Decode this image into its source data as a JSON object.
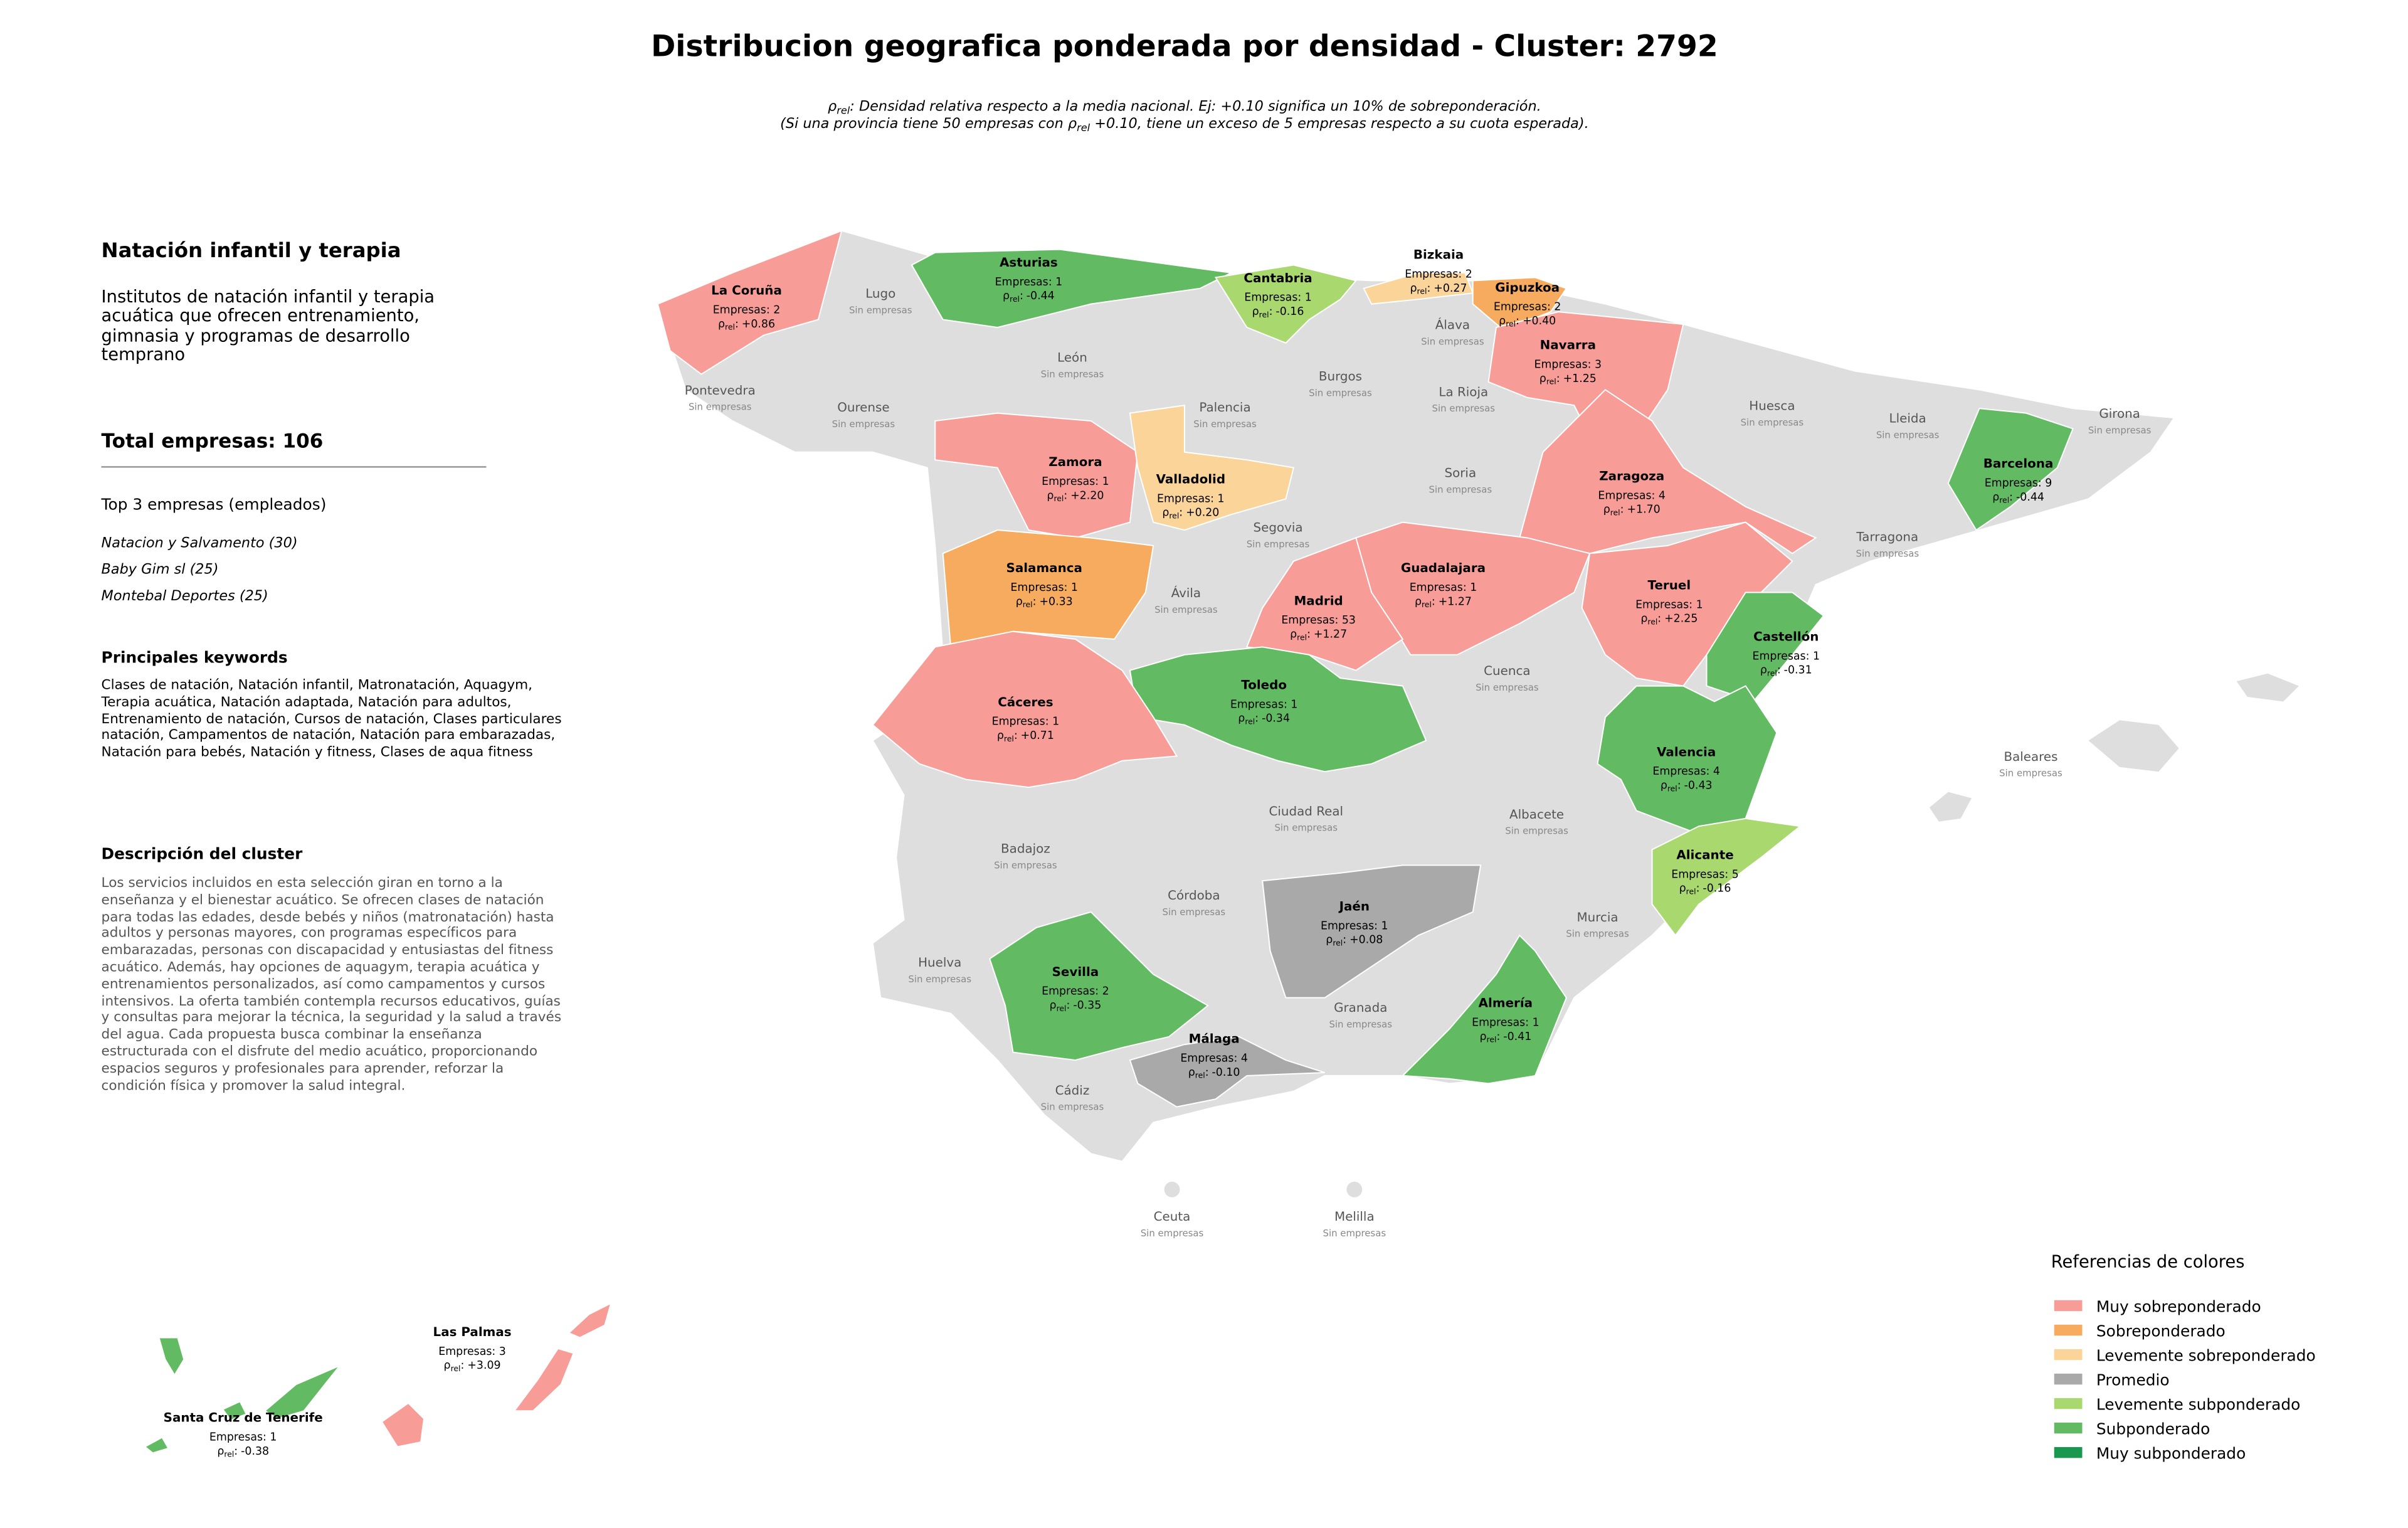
{
  "title": "Distribucion geografica ponderada por densidad - Cluster: 2792",
  "rho_symbol": {
    "base": "ρ",
    "sub": "rel",
    "sep": ":"
  },
  "subtitle": {
    "line1": "Densidad relativa respecto a la media nacional. Ej: +0.10 significa un 10% de sobreponderación.",
    "line2_a": "(Si una provincia tiene 50 empresas con",
    "line2_b": "+0.10, tiene un exceso de 5 empresas respecto a su cuota esperada)."
  },
  "panel": {
    "title": "Natación infantil y terapia",
    "description": "Institutos de natación infantil y terapia acuática que ofrecen entrenamiento, gimnasia y programas de desarrollo temprano",
    "total": "Total empresas: 106",
    "top_title": "Top 3 empresas (empleados)",
    "top": [
      "Natacion y Salvamento (30)",
      "Baby Gim sl (25)",
      "Montebal Deportes (25)"
    ],
    "keywords_title": "Principales keywords",
    "keywords": "Clases de natación, Natación infantil, Matronatación, Aquagym, Terapia acuática, Natación adaptada, Natación para adultos, Entrenamiento de natación, Cursos de natación, Clases particulares natación, Campamentos de natación, Natación para embarazadas, Natación para bebés, Natación y fitness, Clases de aqua fitness",
    "cluster_title": "Descripción del cluster",
    "cluster_text": "Los servicios incluidos en esta selección giran en torno a la enseñanza y el bienestar acuático. Se ofrecen clases de natación para todas las edades, desde bebés y niños (matronatación) hasta adultos y personas mayores, con programas específicos para embarazadas, personas con discapacidad y entusiastas del fitness acuático. Además, hay opciones de aquagym, terapia acuática y entrenamientos personalizados, así como campamentos y cursos intensivos. La oferta también contempla recursos educativos, guías y consultas para mejorar la técnica, la seguridad y la salud a través del agua. Cada propuesta busca combinar la enseñanza estructurada con el disfrute del medio acuático, proporcionando espacios seguros y profesionales para aprender, reforzar la condición física y promover la salud integral."
  },
  "no_companies": "Sin empresas",
  "provinces": [
    {
      "name": "La Coruña",
      "empresas": "Empresas: 2",
      "rho": "+0.86",
      "color": "#f89c98"
    },
    {
      "name": "Lugo"
    },
    {
      "name": "Asturias",
      "empresas": "Empresas: 1",
      "rho": "-0.44",
      "color": "#62bb62"
    },
    {
      "name": "Cantabria",
      "empresas": "Empresas: 1",
      "rho": "-0.16",
      "color": "#a8d86e"
    },
    {
      "name": "Bizkaia",
      "empresas": "Empresas: 2",
      "rho": "+0.27",
      "color": "#fbd49a"
    },
    {
      "name": "Gipuzkoa",
      "empresas": "Empresas: 2",
      "rho": "+0.40",
      "color": "#f6ab5e"
    },
    {
      "name": "Álava"
    },
    {
      "name": "Navarra",
      "empresas": "Empresas: 3",
      "rho": "+1.25",
      "color": "#f89c98"
    },
    {
      "name": "León"
    },
    {
      "name": "Pontevedra"
    },
    {
      "name": "Ourense"
    },
    {
      "name": "Burgos"
    },
    {
      "name": "La Rioja"
    },
    {
      "name": "Huesca"
    },
    {
      "name": "Lleida"
    },
    {
      "name": "Girona"
    },
    {
      "name": "Palencia"
    },
    {
      "name": "Zamora",
      "empresas": "Empresas: 1",
      "rho": "+2.20",
      "color": "#f89c98"
    },
    {
      "name": "Valladolid",
      "empresas": "Empresas: 1",
      "rho": "+0.20",
      "color": "#fbd49a"
    },
    {
      "name": "Soria"
    },
    {
      "name": "Zaragoza",
      "empresas": "Empresas: 4",
      "rho": "+1.70",
      "color": "#f89c98"
    },
    {
      "name": "Barcelona",
      "empresas": "Empresas: 9",
      "rho": "-0.44",
      "color": "#62bb62"
    },
    {
      "name": "Segovia"
    },
    {
      "name": "Tarragona"
    },
    {
      "name": "Salamanca",
      "empresas": "Empresas: 1",
      "rho": "+0.33",
      "color": "#f6ab5e"
    },
    {
      "name": "Guadalajara",
      "empresas": "Empresas: 1",
      "rho": "+1.27",
      "color": "#f89c98"
    },
    {
      "name": "Madrid",
      "empresas": "Empresas: 53",
      "rho": "+1.27",
      "color": "#f89c98"
    },
    {
      "name": "Ávila"
    },
    {
      "name": "Teruel",
      "empresas": "Empresas: 1",
      "rho": "+2.25",
      "color": "#f89c98"
    },
    {
      "name": "Castellón",
      "empresas": "Empresas: 1",
      "rho": "-0.31",
      "color": "#62bb62"
    },
    {
      "name": "Toledo",
      "empresas": "Empresas: 1",
      "rho": "-0.34",
      "color": "#62bb62"
    },
    {
      "name": "Cuenca"
    },
    {
      "name": "Cáceres",
      "empresas": "Empresas: 1",
      "rho": "+0.71",
      "color": "#f89c98"
    },
    {
      "name": "Valencia",
      "empresas": "Empresas: 4",
      "rho": "-0.43",
      "color": "#62bb62"
    },
    {
      "name": "Baleares"
    },
    {
      "name": "Ciudad Real"
    },
    {
      "name": "Albacete"
    },
    {
      "name": "Badajoz"
    },
    {
      "name": "Alicante",
      "empresas": "Empresas: 5",
      "rho": "-0.16",
      "color": "#a8d86e"
    },
    {
      "name": "Córdoba"
    },
    {
      "name": "Jaén",
      "empresas": "Empresas: 1",
      "rho": "+0.08",
      "color": "#a9a9a9"
    },
    {
      "name": "Murcia"
    },
    {
      "name": "Huelva"
    },
    {
      "name": "Sevilla",
      "empresas": "Empresas: 2",
      "rho": "-0.35",
      "color": "#62bb62"
    },
    {
      "name": "Granada"
    },
    {
      "name": "Almería",
      "empresas": "Empresas: 1",
      "rho": "-0.41",
      "color": "#62bb62"
    },
    {
      "name": "Málaga",
      "empresas": "Empresas: 4",
      "rho": "-0.10",
      "color": "#a9a9a9"
    },
    {
      "name": "Cádiz"
    },
    {
      "name": "Ceuta"
    },
    {
      "name": "Melilla"
    },
    {
      "name": "Las Palmas",
      "empresas": "Empresas: 3",
      "rho": "+3.09",
      "color": "#f89c98"
    },
    {
      "name": "Santa Cruz de Tenerife",
      "empresas": "Empresas: 1",
      "rho": "-0.38",
      "color": "#62bb62"
    }
  ],
  "legend": {
    "title": "Referencias de colores",
    "items": [
      {
        "label": "Muy sobreponderado",
        "color": "#f89c98"
      },
      {
        "label": "Sobreponderado",
        "color": "#f6ab5e"
      },
      {
        "label": "Levemente sobreponderado",
        "color": "#fbd49a"
      },
      {
        "label": "Promedio",
        "color": "#a9a9a9"
      },
      {
        "label": "Levemente subponderado",
        "color": "#a8d86e"
      },
      {
        "label": "Subponderado",
        "color": "#62bb62"
      },
      {
        "label": "Muy subponderado",
        "color": "#1a9850"
      }
    ]
  }
}
